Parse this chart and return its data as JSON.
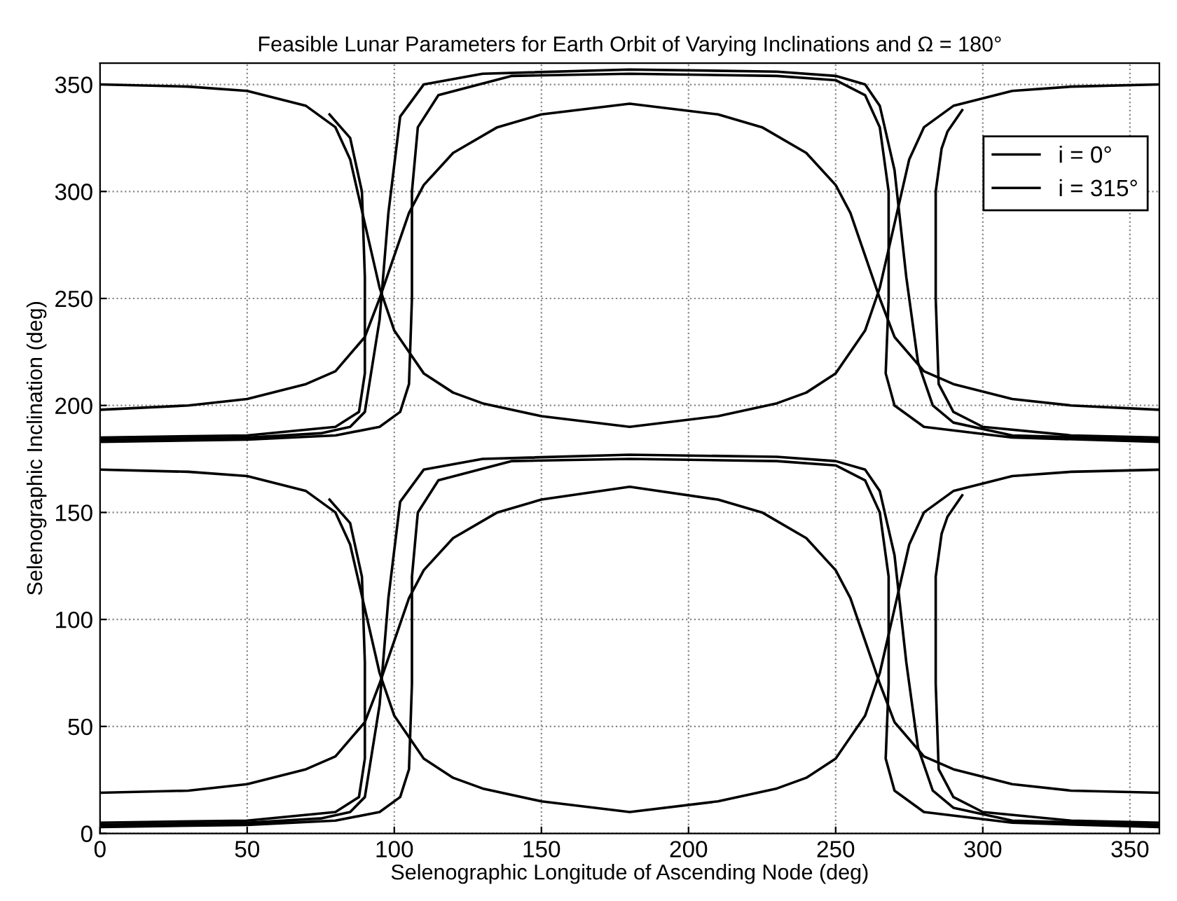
{
  "chart_data": {
    "type": "line",
    "title": "Feasible Lunar Parameters for Earth Orbit of Varying Inclinations and Ω = 180°",
    "xlabel": "Selenographic Longitude of Ascending Node (deg)",
    "ylabel": "Selenographic Inclination (deg)",
    "xlim": [
      0,
      360
    ],
    "ylim": [
      0,
      360
    ],
    "xticks": [
      0,
      50,
      100,
      150,
      200,
      250,
      300,
      350
    ],
    "yticks": [
      0,
      50,
      100,
      150,
      200,
      250,
      300,
      350
    ],
    "grid": true,
    "legend": "top right",
    "line_style": "solid",
    "marker": "none",
    "series": [
      {
        "name": "i = 0°",
        "color": "#000000",
        "x": [
          0,
          30,
          50,
          70,
          80,
          90,
          95,
          100,
          105,
          110,
          120,
          135,
          150,
          180,
          210,
          225,
          240,
          250,
          255,
          260,
          265,
          270,
          280,
          290,
          310,
          330,
          360
        ],
        "values": [
          198,
          200,
          203,
          210,
          216,
          232,
          250,
          270,
          290,
          303,
          318,
          330,
          336,
          341,
          336,
          330,
          318,
          303,
          290,
          270,
          250,
          232,
          216,
          210,
          203,
          200,
          198
        ]
      },
      {
        "name": "i = 315°",
        "color": "#000000",
        "x": [
          0,
          30,
          50,
          70,
          80,
          85,
          90,
          95,
          100,
          110,
          120,
          130,
          150,
          180,
          210,
          230,
          240,
          250,
          260,
          265,
          270,
          275,
          280,
          290,
          310,
          330,
          360
        ],
        "values": [
          350,
          349,
          347,
          340,
          330,
          315,
          285,
          255,
          235,
          215,
          206,
          201,
          195,
          190,
          195,
          201,
          206,
          215,
          235,
          255,
          285,
          315,
          330,
          340,
          347,
          349,
          350
        ]
      },
      {
        "color": "#000000",
        "x": [
          0,
          50,
          75,
          85,
          90,
          95,
          98,
          102,
          110,
          130,
          180,
          230,
          250,
          260,
          265,
          270,
          274,
          278,
          283,
          290,
          310,
          360,
          360,
          310,
          280,
          270,
          267,
          268,
          268,
          265,
          260,
          250,
          230,
          180,
          140,
          115,
          108,
          106,
          106,
          105,
          102,
          95,
          80,
          50,
          0
        ],
        "values": [
          184,
          185,
          187,
          190,
          197,
          240,
          290,
          335,
          350,
          355,
          357,
          356,
          354,
          350,
          340,
          310,
          260,
          220,
          200,
          192,
          186,
          184,
          183,
          185,
          190,
          200,
          215,
          250,
          300,
          330,
          345,
          352,
          354,
          355,
          354,
          345,
          330,
          300,
          250,
          210,
          197,
          190,
          186,
          184,
          183
        ]
      },
      {
        "color": "#000000",
        "x": [
          78,
          85,
          89,
          90,
          90,
          88,
          80,
          50,
          0
        ],
        "values": [
          336,
          325,
          300,
          260,
          215,
          197,
          190,
          186,
          185
        ]
      },
      {
        "color": "#000000",
        "x": [
          293,
          288,
          286,
          284,
          284,
          285,
          290,
          300,
          330,
          360
        ],
        "values": [
          338,
          328,
          320,
          300,
          250,
          210,
          197,
          190,
          186,
          185
        ]
      },
      {
        "color": "#000000",
        "x": [
          0,
          30,
          50,
          70,
          80,
          90,
          95,
          100,
          105,
          110,
          120,
          135,
          150,
          180,
          210,
          225,
          240,
          250,
          255,
          260,
          265,
          270,
          280,
          290,
          310,
          330,
          360
        ],
        "values": [
          19,
          20,
          23,
          30,
          36,
          52,
          70,
          90,
          110,
          123,
          138,
          150,
          156,
          162,
          156,
          150,
          138,
          123,
          110,
          90,
          70,
          52,
          36,
          30,
          23,
          20,
          19
        ]
      },
      {
        "color": "#000000",
        "x": [
          0,
          30,
          50,
          70,
          80,
          85,
          90,
          95,
          100,
          110,
          120,
          130,
          150,
          180,
          210,
          230,
          240,
          250,
          260,
          265,
          270,
          275,
          280,
          290,
          310,
          330,
          360
        ],
        "values": [
          170,
          169,
          167,
          160,
          150,
          135,
          105,
          75,
          55,
          35,
          26,
          21,
          15,
          10,
          15,
          21,
          26,
          35,
          55,
          75,
          105,
          135,
          150,
          160,
          167,
          169,
          170
        ]
      },
      {
        "color": "#000000",
        "x": [
          0,
          50,
          75,
          85,
          90,
          95,
          98,
          102,
          110,
          130,
          180,
          230,
          250,
          260,
          265,
          270,
          274,
          278,
          283,
          290,
          310,
          360,
          360,
          310,
          280,
          270,
          267,
          268,
          268,
          265,
          260,
          250,
          230,
          180,
          140,
          115,
          108,
          106,
          106,
          105,
          102,
          95,
          80,
          50,
          0
        ],
        "values": [
          4,
          5,
          7,
          10,
          17,
          60,
          110,
          155,
          170,
          175,
          177,
          176,
          174,
          170,
          160,
          130,
          80,
          40,
          20,
          12,
          6,
          4,
          3,
          5,
          10,
          20,
          35,
          70,
          120,
          150,
          165,
          172,
          174,
          175,
          174,
          165,
          150,
          120,
          70,
          30,
          17,
          10,
          6,
          4,
          3
        ]
      },
      {
        "color": "#000000",
        "x": [
          78,
          85,
          89,
          90,
          90,
          88,
          80,
          50,
          0
        ],
        "values": [
          156,
          145,
          120,
          80,
          35,
          17,
          10,
          6,
          5
        ]
      },
      {
        "color": "#000000",
        "x": [
          293,
          288,
          286,
          284,
          284,
          285,
          290,
          300,
          330,
          360
        ],
        "values": [
          158,
          148,
          140,
          120,
          70,
          30,
          17,
          10,
          6,
          5
        ]
      }
    ]
  }
}
